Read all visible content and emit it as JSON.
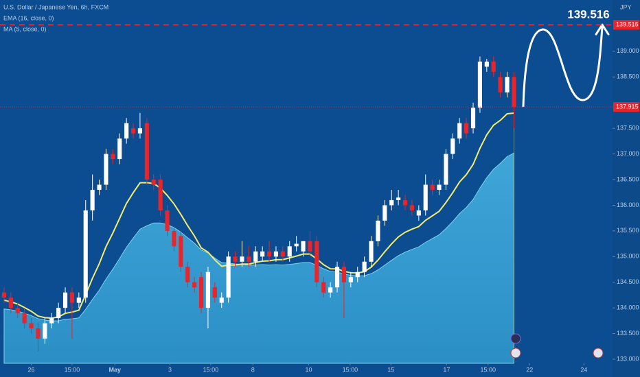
{
  "chart_data": {
    "type": "candlestick",
    "title": "U.S. Dollar / Japanese Yen, 6h, FXCM",
    "indicators": [
      "EMA (16, close, 0)",
      "MA (5, close, 0)"
    ],
    "currency": "JPY",
    "up_color": "#ffffff",
    "down_color": "#e8252a",
    "open": [
      134.3,
      134.2,
      134.0,
      133.9,
      133.7,
      133.6,
      133.4,
      133.7,
      133.8,
      134.0,
      134.3,
      134.1,
      134.2,
      135.9,
      136.3,
      136.4,
      137.0,
      136.9,
      137.3,
      137.5,
      137.4,
      137.6,
      136.5,
      136.5,
      135.9,
      135.5,
      135.4,
      134.8,
      134.5,
      134.6,
      134.0,
      134.4,
      134.1,
      134.2,
      135.0,
      134.9,
      135.0,
      134.9,
      135.0,
      135.1,
      135.0,
      135.1,
      135.0,
      135.2,
      135.1,
      135.3,
      135.3,
      134.5,
      134.3,
      134.4,
      134.8,
      134.5,
      134.6,
      134.7,
      134.9,
      135.3,
      135.7,
      136.0,
      136.1,
      136.1,
      136.0,
      135.8,
      135.9,
      136.4,
      136.3,
      136.4,
      137.0,
      137.3,
      137.6,
      137.5,
      137.9,
      138.7,
      138.8,
      138.5,
      138.2,
      138.5
    ],
    "high": [
      134.4,
      134.3,
      134.1,
      134.0,
      133.8,
      133.7,
      133.8,
      133.9,
      134.1,
      134.4,
      134.4,
      134.3,
      136.1,
      136.6,
      136.5,
      137.1,
      137.1,
      137.4,
      137.7,
      137.6,
      137.8,
      137.7,
      136.6,
      136.6,
      136.0,
      135.6,
      135.5,
      134.9,
      134.6,
      134.7,
      134.8,
      134.5,
      134.3,
      135.1,
      135.1,
      135.3,
      135.2,
      135.2,
      135.2,
      135.3,
      135.2,
      135.2,
      135.3,
      135.4,
      135.3,
      135.5,
      135.4,
      134.6,
      134.5,
      134.9,
      134.9,
      134.7,
      134.8,
      135.0,
      135.4,
      135.8,
      136.1,
      136.3,
      136.3,
      136.2,
      136.1,
      136.0,
      136.6,
      136.5,
      136.5,
      137.1,
      137.4,
      137.7,
      137.7,
      138.0,
      138.9,
      138.85,
      138.9,
      138.6,
      138.6,
      138.6
    ],
    "low": [
      134.1,
      133.9,
      133.8,
      133.6,
      133.5,
      133.15,
      133.3,
      133.6,
      133.7,
      133.9,
      133.4,
      134.0,
      134.1,
      135.7,
      136.2,
      136.3,
      136.8,
      136.8,
      137.2,
      137.3,
      137.3,
      136.4,
      136.3,
      135.8,
      135.4,
      135.1,
      134.7,
      134.4,
      134.3,
      133.9,
      133.6,
      134.1,
      134.0,
      134.1,
      134.8,
      134.8,
      134.8,
      134.8,
      134.9,
      134.9,
      134.9,
      134.9,
      134.9,
      135.1,
      135.0,
      135.0,
      134.4,
      134.2,
      134.2,
      134.3,
      133.8,
      134.4,
      134.5,
      134.6,
      134.8,
      135.2,
      135.6,
      135.9,
      136.0,
      135.9,
      135.8,
      135.7,
      135.8,
      136.2,
      136.2,
      136.3,
      136.9,
      137.2,
      137.3,
      137.4,
      137.8,
      138.6,
      138.5,
      138.1,
      138.1,
      137.5
    ],
    "close": [
      134.2,
      134.0,
      133.9,
      133.7,
      133.6,
      133.4,
      133.7,
      133.8,
      134.0,
      134.3,
      134.1,
      134.2,
      135.9,
      136.3,
      136.4,
      137.0,
      136.9,
      137.3,
      137.6,
      137.4,
      137.5,
      136.5,
      136.4,
      135.9,
      135.5,
      135.2,
      134.8,
      134.5,
      134.4,
      134.0,
      134.7,
      134.2,
      134.2,
      135.0,
      134.9,
      135.0,
      134.9,
      135.1,
      135.1,
      135.0,
      135.1,
      135.0,
      135.2,
      135.25,
      135.3,
      135.1,
      134.5,
      134.3,
      134.4,
      134.8,
      134.5,
      134.6,
      134.7,
      134.9,
      135.3,
      135.7,
      136.0,
      136.1,
      136.15,
      136.0,
      135.9,
      135.9,
      136.4,
      136.3,
      136.4,
      137.0,
      137.3,
      137.6,
      137.4,
      137.9,
      138.8,
      138.8,
      138.6,
      138.2,
      138.5,
      137.915
    ],
    "xlim": [
      -0.6,
      89.3
    ],
    "xticks": [
      {
        "value": 4,
        "label": "26"
      },
      {
        "value": 10,
        "label": "15:00"
      },
      {
        "value": 16.3,
        "label": "May"
      },
      {
        "value": 24.4,
        "label": "3"
      },
      {
        "value": 30.4,
        "label": "15:00"
      },
      {
        "value": 36.6,
        "label": "8"
      },
      {
        "value": 44.8,
        "label": "10"
      },
      {
        "value": 50.9,
        "label": "15:00"
      },
      {
        "value": 56.9,
        "label": "15"
      },
      {
        "value": 65.1,
        "label": "17"
      },
      {
        "value": 71.2,
        "label": "15:00"
      },
      {
        "value": 77.3,
        "label": "22"
      },
      {
        "value": 85.3,
        "label": "24"
      }
    ],
    "ylim": [
      132.92,
      140.0
    ],
    "yticks": [
      {
        "value": 133,
        "label": "133.000"
      },
      {
        "value": 133.5,
        "label": "133.500"
      },
      {
        "value": 134,
        "label": "134.000"
      },
      {
        "value": 134.5,
        "label": "134.500"
      },
      {
        "value": 135,
        "label": "135.000"
      },
      {
        "value": 135.5,
        "label": "135.500"
      },
      {
        "value": 136,
        "label": "136.000"
      },
      {
        "value": 136.5,
        "label": "136.500"
      },
      {
        "value": 137,
        "label": "137.000"
      },
      {
        "value": 137.5,
        "label": "137.500"
      },
      {
        "value": 138.5,
        "label": "138.500"
      },
      {
        "value": 139,
        "label": "139.000"
      }
    ],
    "price_lines": [
      {
        "value": 139.516,
        "label": "139.516",
        "color": "#e8252a"
      },
      {
        "value": 137.915,
        "label": "137.915",
        "color": "#e8252a"
      }
    ],
    "annotation": "139.516"
  }
}
